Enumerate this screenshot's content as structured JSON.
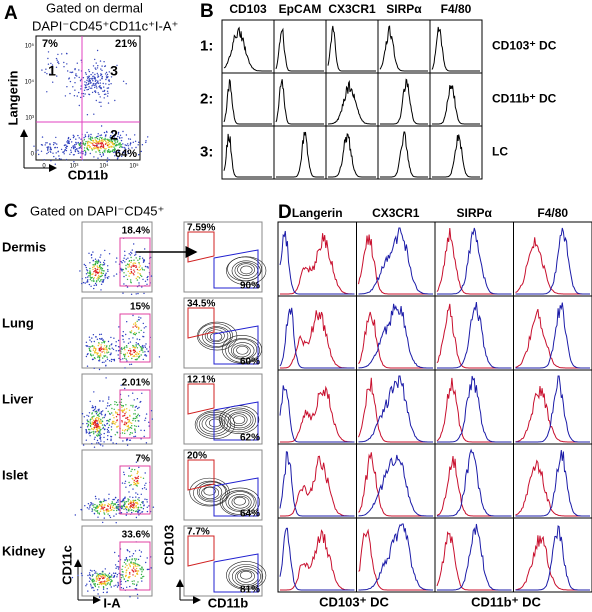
{
  "panels": {
    "A": {
      "label": "A",
      "gate": [
        "Gated on dermal",
        "DAPI⁻CD45⁺CD11c⁺I-A⁺"
      ],
      "y_axis": "Langerin",
      "x_axis": "CD11b",
      "xticks": [
        "0",
        "10³",
        "10⁴",
        "10⁵"
      ],
      "yticks": [
        "10⁵",
        "10⁴",
        "10³",
        "0"
      ],
      "quadrants": [
        {
          "number": "1",
          "percent": "7%"
        },
        {
          "number": "3",
          "percent": "21%"
        },
        {
          "number": "2",
          "percent": "64%"
        }
      ]
    },
    "B": {
      "label": "B",
      "columns": [
        "CD103",
        "EpCAM",
        "CX3CR1",
        "SIRPα",
        "F4/80"
      ],
      "rows": [
        {
          "label": "1:",
          "population": "CD103⁺ DC"
        },
        {
          "label": "2:",
          "population": "CD11b⁺ DC"
        },
        {
          "label": "3:",
          "population": "LC"
        }
      ]
    },
    "C": {
      "label": "C",
      "gate": "Gated on DAPI⁻CD45⁺",
      "dot_x_axis": "I-A",
      "dot_y_axis": "CD11c",
      "contour_x_axis": "CD11b",
      "contour_y_axis": "CD103",
      "rows": [
        {
          "tissue": "Dermis",
          "dot_percent": "18.4%",
          "contour_top": "7.59%",
          "contour_bottom": "90%"
        },
        {
          "tissue": "Lung",
          "dot_percent": "15%",
          "contour_top": "34.5%",
          "contour_bottom": "60%"
        },
        {
          "tissue": "Liver",
          "dot_percent": "2.01%",
          "contour_top": "12.1%",
          "contour_bottom": "62%"
        },
        {
          "tissue": "Islet",
          "dot_percent": "7%",
          "contour_top": "20%",
          "contour_bottom": "64%"
        },
        {
          "tissue": "Kidney",
          "dot_percent": "33.6%",
          "contour_top": "7.7%",
          "contour_bottom": "81%"
        }
      ]
    },
    "D": {
      "label": "D",
      "columns": [
        "Langerin",
        "CX3CR1",
        "SIRPα",
        "F4/80"
      ],
      "legend": [
        {
          "name": "CD103⁺ DC",
          "color": "#c8102e"
        },
        {
          "name": "CD11b⁺ DC",
          "color": "#1c1ca8"
        }
      ]
    }
  }
}
